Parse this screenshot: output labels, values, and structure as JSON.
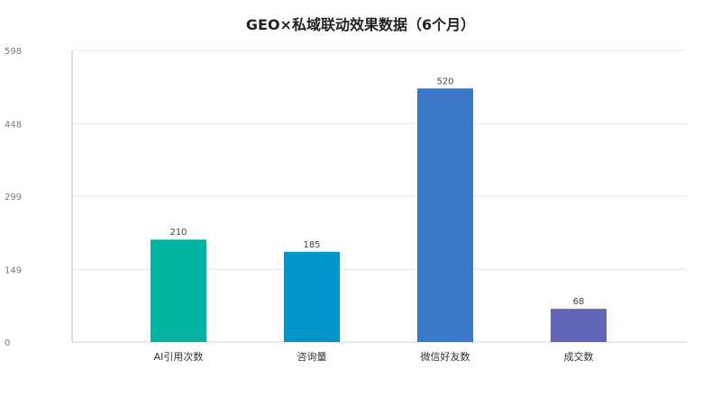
{
  "chart_data": {
    "type": "bar",
    "title": "GEO×私域联动效果数据（6个月）",
    "xlabel": "",
    "ylabel": "",
    "categories": [
      "AI引用次数",
      "咨询量",
      "微信好友数",
      "成交数"
    ],
    "values": [
      210,
      185,
      520,
      68
    ],
    "colors": [
      "#00b3a1",
      "#0095c8",
      "#3a78c8",
      "#6163b4"
    ],
    "ylim": [
      0,
      598
    ],
    "yticks": [
      0,
      149,
      299,
      448,
      598
    ],
    "grid": true,
    "legend": "none"
  }
}
